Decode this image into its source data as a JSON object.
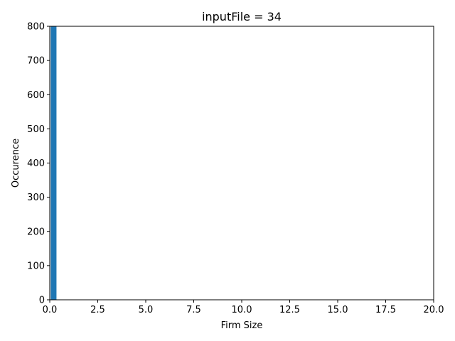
{
  "chart_data": {
    "type": "bar",
    "title": "inputFile = 34",
    "xlabel": "Firm Size",
    "ylabel": "Occurence",
    "xlim": [
      0,
      20
    ],
    "ylim": [
      0,
      800
    ],
    "xticks": [
      0.0,
      2.5,
      5.0,
      7.5,
      10.0,
      12.5,
      15.0,
      17.5,
      20.0
    ],
    "xtick_labels": [
      "0.0",
      "2.5",
      "5.0",
      "7.5",
      "10.0",
      "12.5",
      "15.0",
      "17.5",
      "20.0"
    ],
    "yticks": [
      0,
      100,
      200,
      300,
      400,
      500,
      600,
      700,
      800
    ],
    "ytick_labels": [
      "0",
      "100",
      "200",
      "300",
      "400",
      "500",
      "600",
      "700",
      "800"
    ],
    "bars": [
      {
        "x0": 0.05,
        "x1": 0.35,
        "value": 800
      }
    ],
    "color": "#1f77b4",
    "grid": false,
    "legend": "none"
  }
}
